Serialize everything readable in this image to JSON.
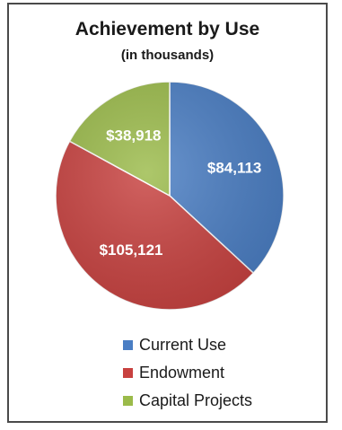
{
  "chart_data": {
    "type": "pie",
    "title": "Achievement by Use",
    "subtitle": "(in thousands)",
    "slices": [
      {
        "name": "Current Use",
        "value": 84113,
        "label": "$84,113",
        "color": "#4a7ec4"
      },
      {
        "name": "Endowment",
        "value": 105121,
        "label": "$105,121",
        "color": "#c8413f"
      },
      {
        "name": "Capital Projects",
        "value": 38918,
        "label": "$38,918",
        "color": "#9bbb4a"
      }
    ],
    "legend_placement": "bottom"
  }
}
